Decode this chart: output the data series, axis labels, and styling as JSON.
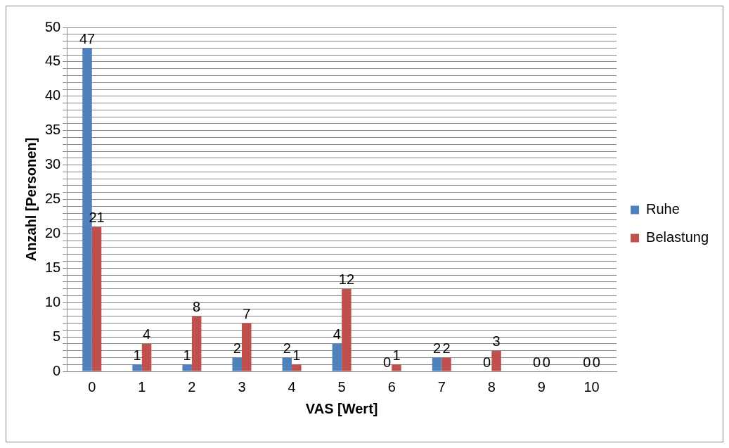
{
  "chart_data": {
    "type": "bar",
    "xlabel": "VAS [Wert]",
    "ylabel": "Anzahl [Personen]",
    "categories": [
      "0",
      "1",
      "2",
      "3",
      "4",
      "5",
      "6",
      "7",
      "8",
      "9",
      "10"
    ],
    "series": [
      {
        "name": "Ruhe",
        "color": "#4f81bd",
        "values": [
          47,
          1,
          1,
          2,
          2,
          4,
          0,
          2,
          0,
          0,
          0
        ]
      },
      {
        "name": "Belastung",
        "color": "#c0504d",
        "values": [
          21,
          4,
          8,
          7,
          1,
          12,
          1,
          2,
          3,
          0,
          0
        ]
      }
    ],
    "ylim": [
      0,
      50
    ],
    "yticks": [
      0,
      {
        "value": 1,
        "label": null
      },
      {
        "value": 2,
        "label": null
      },
      {
        "value": 3,
        "label": null
      },
      {
        "value": 4,
        "label": null
      },
      5,
      {
        "value": 6,
        "label": null
      },
      {
        "value": 7,
        "label": null
      },
      {
        "value": 8,
        "label": null
      },
      {
        "value": 9,
        "label": null
      },
      10,
      {
        "value": 11,
        "label": null
      },
      {
        "value": 12,
        "label": null
      },
      {
        "value": 13,
        "label": null
      },
      {
        "value": 14,
        "label": null
      },
      15,
      {
        "value": 16,
        "label": null
      },
      {
        "value": 17,
        "label": null
      },
      {
        "value": 18,
        "label": null
      },
      {
        "value": 19,
        "label": null
      },
      20,
      {
        "value": 21,
        "label": null
      },
      {
        "value": 22,
        "label": null
      },
      {
        "value": 23,
        "label": null
      },
      {
        "value": 24,
        "label": null
      },
      25,
      {
        "value": 26,
        "label": null
      },
      {
        "value": 27,
        "label": null
      },
      {
        "value": 28,
        "label": null
      },
      {
        "value": 29,
        "label": null
      },
      30,
      {
        "value": 31,
        "label": null
      },
      {
        "value": 32,
        "label": null
      },
      {
        "value": 33,
        "label": null
      },
      {
        "value": 34,
        "label": null
      },
      35,
      {
        "value": 36,
        "label": null
      },
      {
        "value": 37,
        "label": null
      },
      {
        "value": 38,
        "label": null
      },
      {
        "value": 39,
        "label": null
      },
      40,
      {
        "value": 41,
        "label": null
      },
      {
        "value": 42,
        "label": null
      },
      {
        "value": 43,
        "label": null
      },
      {
        "value": 44,
        "label": null
      },
      45,
      {
        "value": 46,
        "label": null
      },
      {
        "value": 47,
        "label": null
      },
      {
        "value": 48,
        "label": null
      },
      {
        "value": 49,
        "label": null
      },
      50
    ],
    "grid": "y",
    "legend": "right",
    "data_labels": true
  }
}
